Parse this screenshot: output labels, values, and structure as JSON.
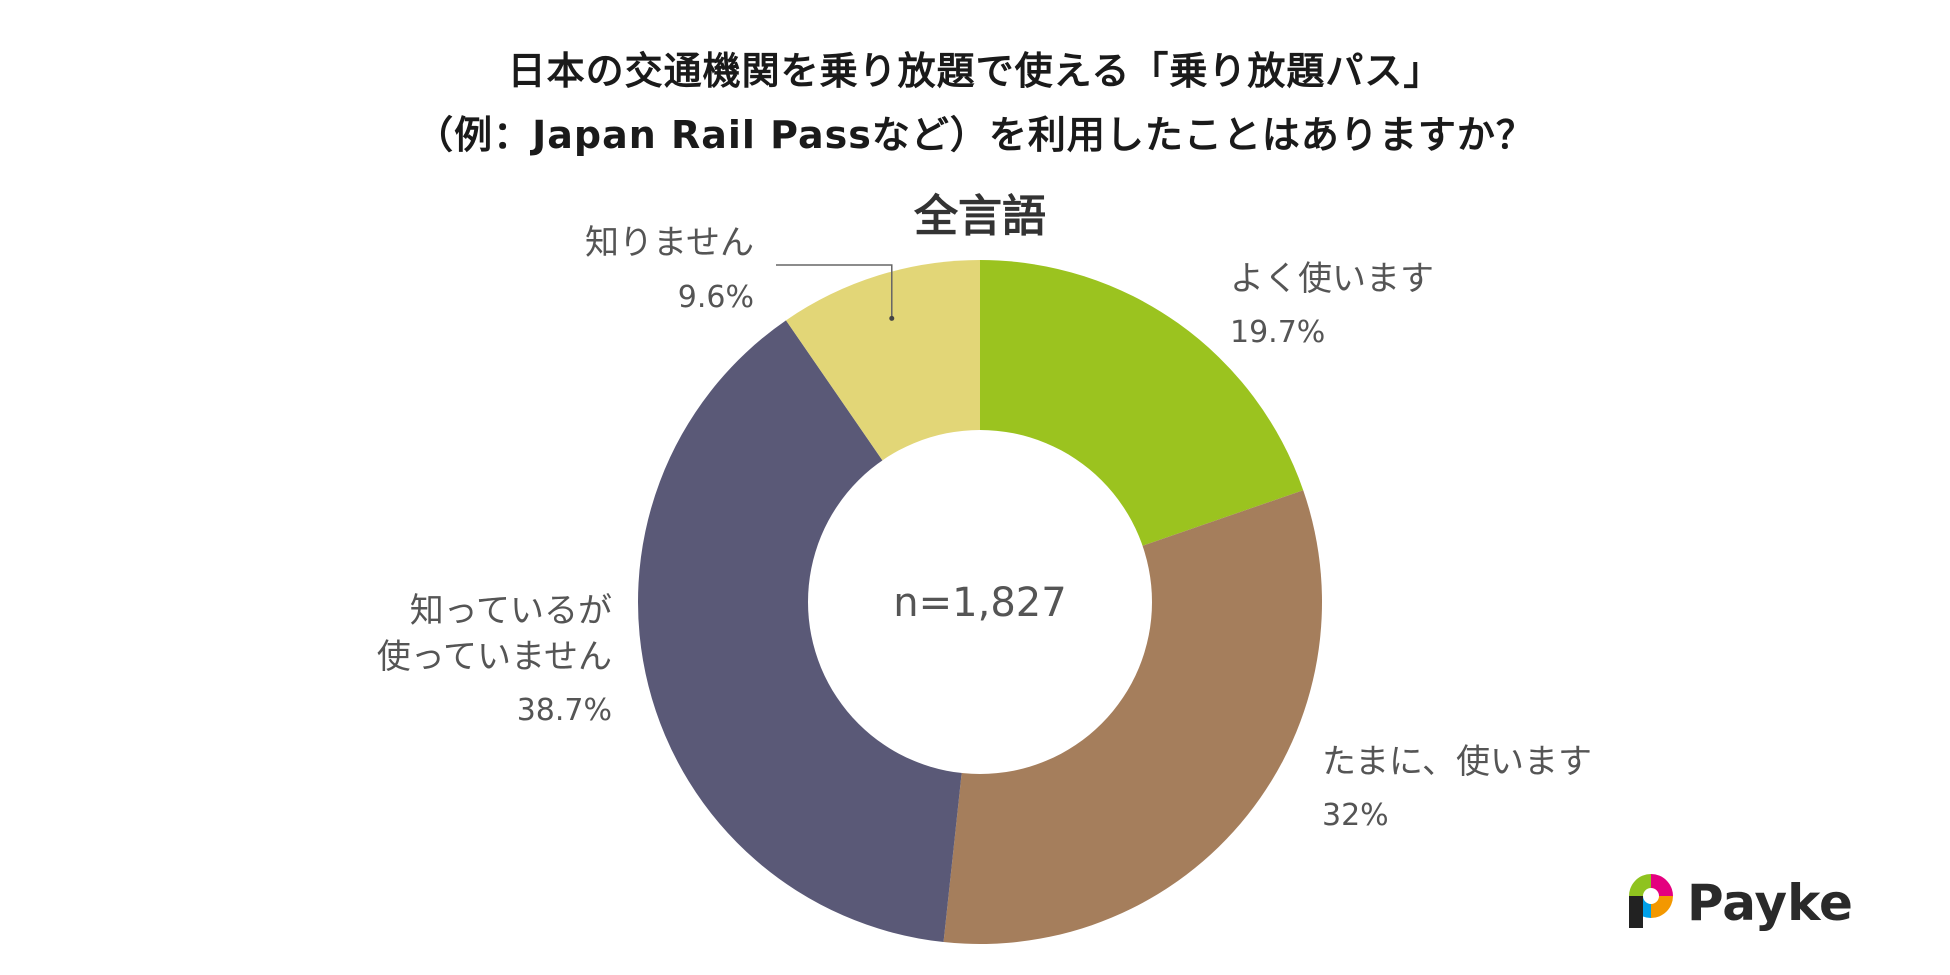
{
  "title_line1": "日本の交通機関を乗り放題で使える「乗り放題パス」",
  "title_line2": "（例：Japan Rail Passなど）を利用したことはありますか？",
  "subtitle": "全言語",
  "center_label": "n=1,827",
  "logo_text": "Payke",
  "chart_data": {
    "type": "pie",
    "title": "日本の交通機関を乗り放題で使える「乗り放題パス」（例：Japan Rail Passなど）を利用したことはありますか？",
    "subtitle": "全言語",
    "donut": true,
    "series": [
      {
        "label": "よく使います",
        "label_lines": [
          "よく使います"
        ],
        "value": 19.7,
        "value_label": "19.7%",
        "color": "#9bc31f"
      },
      {
        "label": "たまに、使います",
        "label_lines": [
          "たまに、使います"
        ],
        "value": 32,
        "value_label": "32%",
        "color": "#a57e5c"
      },
      {
        "label": "知っているが使っていません",
        "label_lines": [
          "知っているが",
          "使っていません"
        ],
        "value": 38.7,
        "value_label": "38.7%",
        "color": "#5a5977"
      },
      {
        "label": "知りません",
        "label_lines": [
          "知りません"
        ],
        "value": 9.6,
        "value_label": "9.6%",
        "color": "#e2d677"
      }
    ]
  },
  "logo_colors": [
    "#e4007f",
    "#f39800",
    "#00a0e9",
    "#8fc31f"
  ]
}
